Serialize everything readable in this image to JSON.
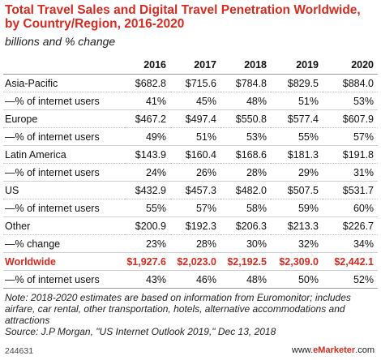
{
  "chart_data": {
    "type": "table",
    "title": "Total Travel Sales and Digital Travel Penetration Worldwide, by Country/Region, 2016-2020",
    "subtitle": "billions and % change",
    "columns": [
      "2016",
      "2017",
      "2018",
      "2019",
      "2020"
    ],
    "rows": [
      {
        "label": "Asia-Pacific",
        "values": [
          "$682.8",
          "$715.6",
          "$784.8",
          "$829.5",
          "$884.0"
        ],
        "kind": "main"
      },
      {
        "label": "—% of internet users",
        "values": [
          "41%",
          "45%",
          "48%",
          "51%",
          "53%"
        ],
        "kind": "sub"
      },
      {
        "label": "Europe",
        "values": [
          "$467.2",
          "$497.4",
          "$550.8",
          "$577.4",
          "$607.9"
        ],
        "kind": "main"
      },
      {
        "label": "—% of internet users",
        "values": [
          "49%",
          "51%",
          "53%",
          "55%",
          "57%"
        ],
        "kind": "sub"
      },
      {
        "label": "Latin America",
        "values": [
          "$143.9",
          "$160.4",
          "$168.6",
          "$181.3",
          "$191.8"
        ],
        "kind": "main"
      },
      {
        "label": "—% of internet users",
        "values": [
          "24%",
          "26%",
          "28%",
          "29%",
          "31%"
        ],
        "kind": "sub"
      },
      {
        "label": "US",
        "values": [
          "$432.9",
          "$457.3",
          "$482.0",
          "$507.5",
          "$531.7"
        ],
        "kind": "main"
      },
      {
        "label": "—% of internet users",
        "values": [
          "55%",
          "57%",
          "58%",
          "59%",
          "60%"
        ],
        "kind": "sub"
      },
      {
        "label": "Other",
        "values": [
          "$200.9",
          "$192.3",
          "$206.3",
          "$213.3",
          "$226.7"
        ],
        "kind": "main"
      },
      {
        "label": "—% change",
        "values": [
          "23%",
          "28%",
          "30%",
          "32%",
          "34%"
        ],
        "kind": "sub"
      },
      {
        "label": "Worldwide",
        "values": [
          "$1,927.6",
          "$2,023.0",
          "$2,192.5",
          "$2,309.0",
          "$2,442.1"
        ],
        "kind": "highlight"
      },
      {
        "label": "—% of internet users",
        "values": [
          "43%",
          "46%",
          "48%",
          "50%",
          "52%"
        ],
        "kind": "last"
      }
    ]
  },
  "note": "Note: 2018-2020 estimates are based on information from Euromonitor; includes airfare, car rental, other transportation, hotels, alternative accommodations and attractions",
  "source": "Source: J.P Morgan, \"US Internet Outlook 2019,\" Dec 13, 2018",
  "footer": {
    "chart_id": "244631",
    "url_prefix": "www.",
    "url_brand": "eMarketer",
    "url_suffix": ".com"
  },
  "colors": {
    "accent": "#d62b1f",
    "text": "#111111",
    "rule": "#9a9a9a"
  }
}
